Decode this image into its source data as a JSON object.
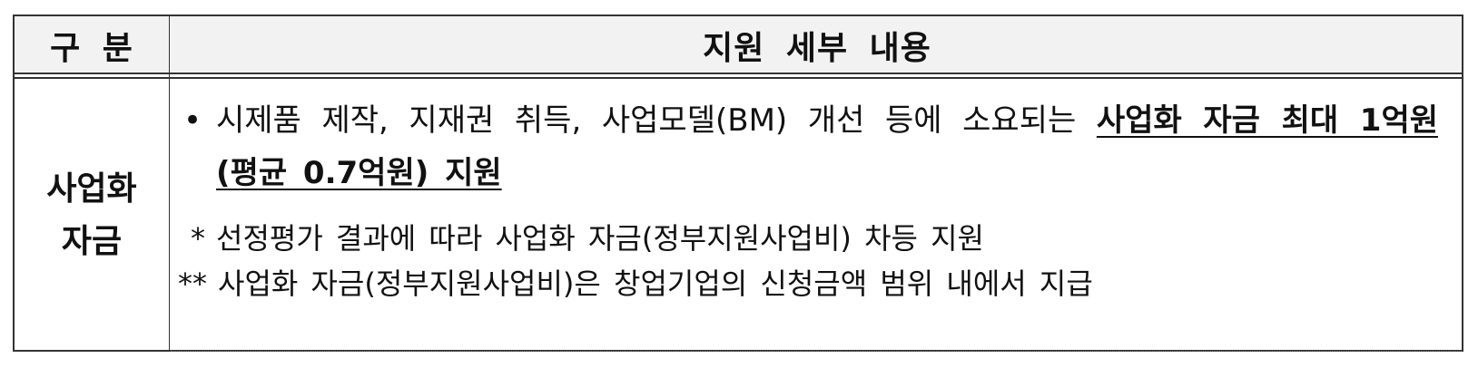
{
  "header": {
    "col1": "구 분",
    "col2": "지원 세부 내용"
  },
  "row": {
    "category_line1": "사업화",
    "category_line2": "자금",
    "bullet_mark": "•",
    "bullet_text": "시제품 제작, 지재권 취득, 사업모델(BM) 개선 등에 소요되는",
    "bullet_emphasis": "사업화 자금 최대 1억원 (평균 0.7억원) 지원",
    "note1_mark": "*",
    "note1_text": "선정평가 결과에 따라 사업화 자금(정부지원사업비) 차등 지원",
    "note2_mark": "**",
    "note2_text": "사업화 자금(정부지원사업비)은 창업기업의 신청금액 범위 내에서 지급"
  }
}
